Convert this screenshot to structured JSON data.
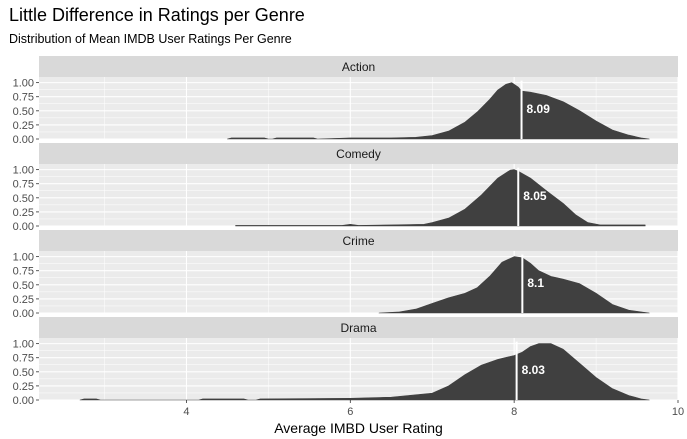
{
  "title": "Little Difference in Ratings per Genre",
  "subtitle": "Distribution of Mean IMDB User Ratings Per Genre",
  "chart_data": {
    "type": "area",
    "title": "Little Difference in Ratings per Genre",
    "subtitle": "Distribution of Mean IMDB User Ratings Per Genre",
    "xlabel": "Average IMBD User Rating",
    "ylabel": "",
    "xlim": [
      2.2,
      10.0
    ],
    "ylim": [
      0,
      1.1
    ],
    "x_ticks": [
      4,
      6,
      8,
      10
    ],
    "y_ticks": [
      "0.00",
      "0.25",
      "0.50",
      "0.75",
      "1.00"
    ],
    "grid": true,
    "colors": {
      "area": "#404040",
      "panel": "#ebebeb",
      "strip": "#d9d9d9",
      "mean_line": "#ffffff"
    },
    "facets": [
      {
        "label": "Action",
        "mean_label": "8.09",
        "mean": 8.09,
        "x": [
          4.5,
          4.55,
          4.95,
          5.0,
          5.05,
          5.1,
          5.55,
          5.6,
          6.0,
          6.5,
          6.8,
          7.0,
          7.2,
          7.4,
          7.55,
          7.7,
          7.8,
          7.9,
          7.97,
          8.05,
          8.09,
          8.2,
          8.4,
          8.6,
          8.8,
          9.0,
          9.2,
          9.4,
          9.55,
          9.65
        ],
        "y": [
          0.0,
          0.02,
          0.02,
          0.0,
          0.0,
          0.02,
          0.02,
          0.0,
          0.02,
          0.02,
          0.03,
          0.06,
          0.14,
          0.3,
          0.48,
          0.7,
          0.87,
          0.97,
          1.0,
          0.92,
          0.85,
          0.83,
          0.77,
          0.66,
          0.5,
          0.32,
          0.16,
          0.07,
          0.02,
          0.0
        ]
      },
      {
        "label": "Comedy",
        "mean_label": "8.05",
        "mean": 8.05,
        "x": [
          4.6,
          5.5,
          5.9,
          6.0,
          6.1,
          6.5,
          6.9,
          7.0,
          7.2,
          7.4,
          7.6,
          7.8,
          7.95,
          8.0,
          8.05,
          8.2,
          8.4,
          8.6,
          8.75,
          8.9,
          9.05,
          9.2,
          9.4,
          9.6
        ],
        "y": [
          0.01,
          0.01,
          0.01,
          0.03,
          0.01,
          0.02,
          0.03,
          0.06,
          0.14,
          0.3,
          0.55,
          0.85,
          0.99,
          1.0,
          0.97,
          0.85,
          0.62,
          0.4,
          0.2,
          0.06,
          0.02,
          0.02,
          0.02,
          0.02
        ]
      },
      {
        "label": "Crime",
        "mean_label": "8.1",
        "mean": 8.1,
        "x": [
          6.35,
          6.6,
          6.8,
          7.0,
          7.2,
          7.4,
          7.55,
          7.7,
          7.85,
          8.0,
          8.1,
          8.2,
          8.3,
          8.45,
          8.6,
          8.8,
          9.0,
          9.2,
          9.4,
          9.55,
          9.65
        ],
        "y": [
          0.0,
          0.02,
          0.07,
          0.17,
          0.27,
          0.35,
          0.45,
          0.65,
          0.9,
          1.0,
          0.98,
          0.88,
          0.75,
          0.65,
          0.6,
          0.52,
          0.35,
          0.15,
          0.05,
          0.02,
          0.0
        ]
      },
      {
        "label": "Drama",
        "mean_label": "8.03",
        "mean": 8.03,
        "x": [
          2.7,
          2.75,
          2.9,
          2.95,
          4.15,
          4.2,
          4.7,
          4.75,
          4.85,
          4.9,
          6.0,
          6.5,
          7.0,
          7.2,
          7.4,
          7.6,
          7.8,
          8.0,
          8.1,
          8.2,
          8.3,
          8.45,
          8.6,
          8.8,
          9.0,
          9.2,
          9.4,
          9.55,
          9.65
        ],
        "y": [
          0.0,
          0.02,
          0.02,
          0.0,
          0.0,
          0.02,
          0.02,
          0.0,
          0.0,
          0.02,
          0.03,
          0.05,
          0.12,
          0.25,
          0.45,
          0.62,
          0.72,
          0.79,
          0.85,
          0.95,
          1.0,
          1.0,
          0.9,
          0.65,
          0.4,
          0.2,
          0.08,
          0.02,
          0.0
        ]
      }
    ]
  }
}
